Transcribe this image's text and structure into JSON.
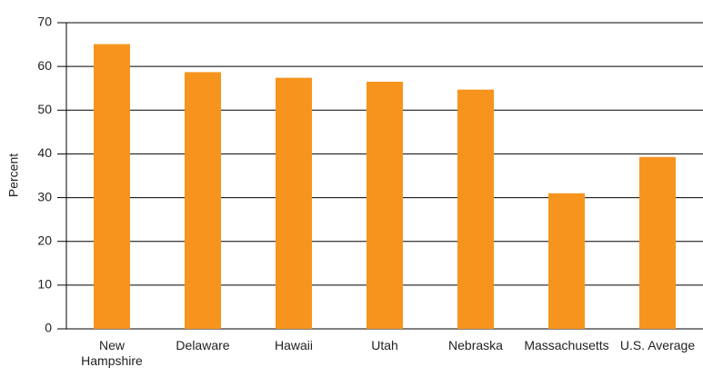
{
  "chart_data": {
    "type": "bar",
    "y_label": "Percent",
    "categories": [
      "New Hampshire",
      "Delaware",
      "Hawaii",
      "Utah",
      "Nebraska",
      "Massachusetts",
      "U.S. Average"
    ],
    "values": [
      65.1,
      58.7,
      57.4,
      56.5,
      54.7,
      31,
      39.3
    ],
    "color": "#f7941d",
    "ylim": [
      0,
      70
    ],
    "yticks": [
      0,
      10,
      20,
      30,
      40,
      50,
      60,
      70
    ],
    "grid": true
  }
}
